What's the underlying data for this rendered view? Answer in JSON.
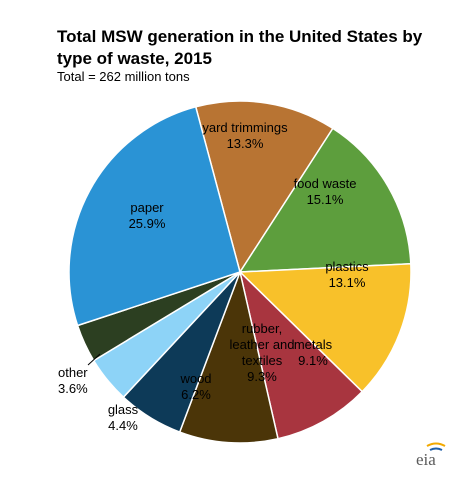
{
  "chart_data": {
    "type": "pie",
    "title": "Total MSW generation in the United States by type of waste, 2015",
    "subtitle": "Total = 262 million tons",
    "slices": [
      {
        "label": [
          "yard trimmings"
        ],
        "pct": "13.3%",
        "value": 13.3,
        "color": "#b87433"
      },
      {
        "label": [
          "food waste"
        ],
        "pct": "15.1%",
        "value": 15.1,
        "color": "#5d9e3d"
      },
      {
        "label": [
          "plastics"
        ],
        "pct": "13.1%",
        "value": 13.1,
        "color": "#f8c12a"
      },
      {
        "label": [
          "metals"
        ],
        "pct": "9.1%",
        "value": 9.1,
        "color": "#a8353f"
      },
      {
        "label": [
          "rubber,",
          "leather and",
          "textiles"
        ],
        "pct": "9.3%",
        "value": 9.3,
        "color": "#4b3508"
      },
      {
        "label": [
          "wood"
        ],
        "pct": "6.2%",
        "value": 6.2,
        "color": "#0d3a58"
      },
      {
        "label": [
          "glass"
        ],
        "pct": "4.4%",
        "value": 4.4,
        "color": "#8dd3f7"
      },
      {
        "label": [
          "other"
        ],
        "pct": "3.6%",
        "value": 3.6,
        "color": "#2c3f21"
      },
      {
        "label": [
          "paper"
        ],
        "pct": "25.9%",
        "value": 25.9,
        "color": "#2a93d5"
      }
    ]
  },
  "source": {
    "logo_text": "eia"
  }
}
